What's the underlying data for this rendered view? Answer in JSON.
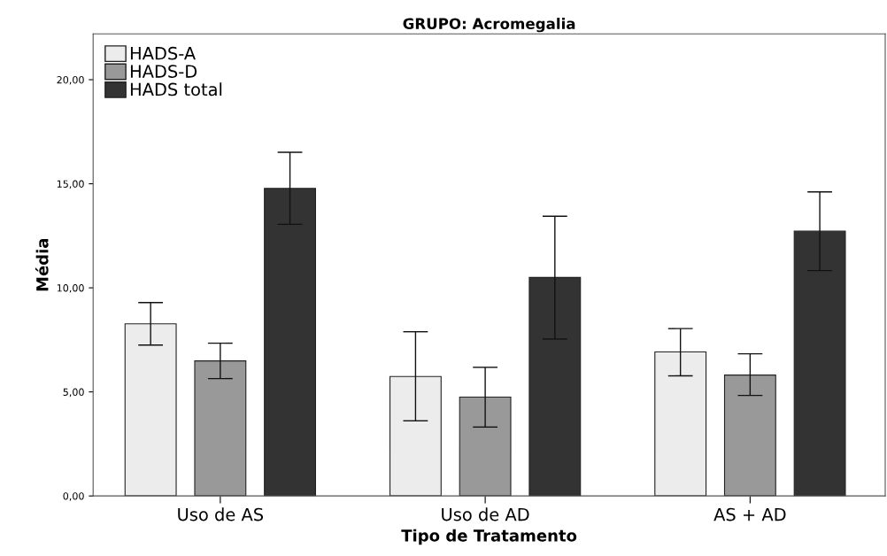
{
  "chart_data": {
    "type": "bar",
    "title": "GRUPO: Acromegalia",
    "xlabel": "Tipo de Tratamento",
    "ylabel": "Média",
    "categories": [
      "Uso de AS",
      "Uso de AD",
      "AS + AD"
    ],
    "series": [
      {
        "name": "HADS-A",
        "color": "#ececec",
        "values": [
          8.27,
          5.74,
          6.92
        ],
        "errors": [
          [
            7.25,
            9.29
          ],
          [
            3.61,
            7.89
          ],
          [
            5.77,
            8.04
          ]
        ]
      },
      {
        "name": "HADS-D",
        "color": "#999999",
        "values": [
          6.49,
          4.75,
          5.81
        ],
        "errors": [
          [
            5.64,
            7.34
          ],
          [
            3.31,
            6.18
          ],
          [
            4.83,
            6.83
          ]
        ]
      },
      {
        "name": "HADS total",
        "color": "#333333",
        "values": [
          14.78,
          10.5,
          12.72
        ],
        "errors": [
          [
            13.05,
            16.51
          ],
          [
            7.54,
            13.44
          ],
          [
            10.83,
            14.61
          ]
        ]
      }
    ],
    "ylim": [
      0,
      22.2
    ],
    "yticks": [
      {
        "value": 0,
        "label": "0,00"
      },
      {
        "value": 5,
        "label": "5,00"
      },
      {
        "value": 10,
        "label": "10,00"
      },
      {
        "value": 15,
        "label": "15,00"
      },
      {
        "value": 20,
        "label": "20,00"
      }
    ],
    "legend": "top left",
    "grid": false
  }
}
